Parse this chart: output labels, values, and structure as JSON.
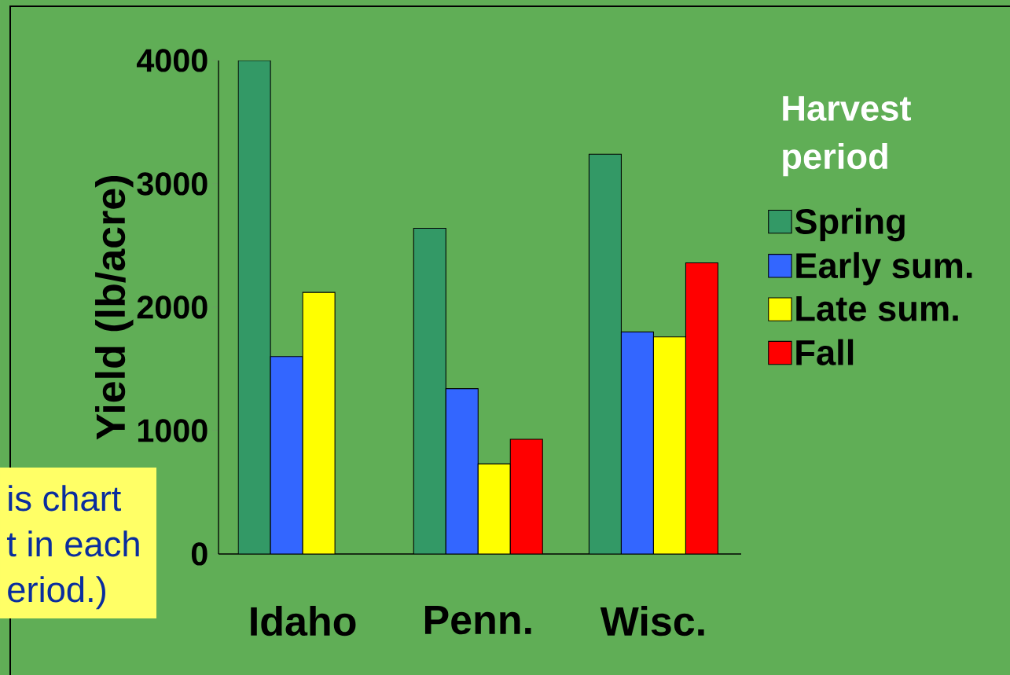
{
  "chart_data": {
    "type": "bar",
    "ylabel": "Yield (lb/acre)",
    "legend_title": "Harvest period",
    "categories": [
      "Idaho",
      "Penn.",
      "Wisc."
    ],
    "series": [
      {
        "name": "Spring",
        "color": "#339966",
        "values": [
          4000,
          2640,
          3240
        ]
      },
      {
        "name": "Early sum.",
        "color": "#3366ff",
        "values": [
          1600,
          1340,
          1800
        ]
      },
      {
        "name": "Late sum.",
        "color": "#ffff00",
        "values": [
          2120,
          730,
          1760
        ]
      },
      {
        "name": "Fall",
        "color": "#ff0000",
        "values": [
          null,
          930,
          2360
        ]
      }
    ],
    "ylim": [
      0,
      4000
    ],
    "yticks": [
      0,
      1000,
      2000,
      3000,
      4000
    ],
    "grid": false,
    "legend": "right",
    "annotations": [
      "is chart",
      "t in each",
      "eriod.)"
    ]
  }
}
